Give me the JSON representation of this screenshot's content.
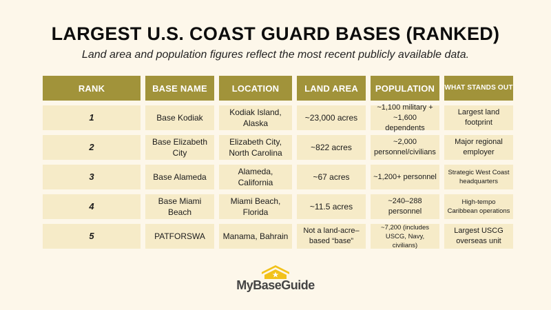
{
  "title": "LARGEST U.S. COAST GUARD BASES (RANKED)",
  "subtitle": "Land area and population figures reflect the most recent publicly available data.",
  "headers": [
    "RANK",
    "BASE NAME",
    "LOCATION",
    "LAND AREA",
    "POPULATION",
    "WHAT STANDS OUT"
  ],
  "rows": [
    {
      "rank": "1",
      "name": "Base Kodiak",
      "location": "Kodiak Island, Alaska",
      "area": "~23,000 acres",
      "population": "~1,100 military + ~1,600 dependents",
      "standout": "Largest land footprint"
    },
    {
      "rank": "2",
      "name": "Base Elizabeth City",
      "location": "Elizabeth City, North Carolina",
      "area": "~822 acres",
      "population": "~2,000 personnel/civilians",
      "standout": "Major regional employer"
    },
    {
      "rank": "3",
      "name": "Base Alameda",
      "location": "Alameda, California",
      "area": "~67 acres",
      "population": "~1,200+ personnel",
      "standout": "Strategic West Coast headquarters"
    },
    {
      "rank": "4",
      "name": "Base Miami Beach",
      "location": "Miami Beach, Florida",
      "area": "~11.5 acres",
      "population": "~240–288 personnel",
      "standout": "High-tempo Caribbean operations"
    },
    {
      "rank": "5",
      "name": "PATFORSWA",
      "location": "Manama, Bahrain",
      "area": "Not a land-acre–based “base”",
      "population": "~7,200 (includes USCG, Navy, civilians)",
      "standout": "Largest USCG overseas unit"
    }
  ],
  "logo": {
    "text": "MyBaseGuide",
    "icon": "house-chevron-star-icon",
    "color": "#f2c21b"
  }
}
